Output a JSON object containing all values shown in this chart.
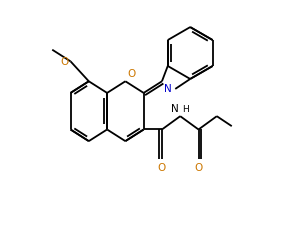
{
  "background_color": "#ffffff",
  "line_color": "#000000",
  "orange_color": "#cc7700",
  "blue_color": "#0000cc",
  "lw": 1.3,
  "figsize": [
    2.84,
    2.51
  ],
  "dpi": 100,
  "xlim": [
    0,
    8.5
  ],
  "ylim": [
    0,
    7.5
  ]
}
